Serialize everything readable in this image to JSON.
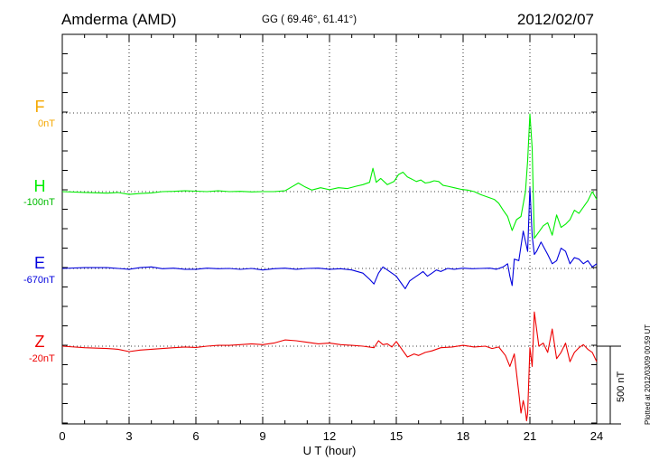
{
  "header": {
    "station": "Amderma (AMD)",
    "coords": "GG ( 69.46°,  61.41°)",
    "date": "2012/02/07"
  },
  "footer": {
    "plotted": "Plotted at 2012/03/09 00:59 UT"
  },
  "scale_bar": {
    "label": "500 nT",
    "value_nT": 500
  },
  "chart_data": {
    "type": "line",
    "xlabel": "U T (hour)",
    "xlim": [
      0,
      24
    ],
    "xticks": [
      0,
      3,
      6,
      9,
      12,
      15,
      18,
      21,
      24
    ],
    "grid": true,
    "legend": "left",
    "series": [
      {
        "name": "F",
        "baseline_label": "0nT",
        "color": "#f5a800",
        "x": [],
        "values": []
      },
      {
        "name": "H",
        "baseline_label": "-100nT",
        "color": "#00ee00",
        "x": [
          0,
          1,
          2,
          2.5,
          3,
          3.5,
          4,
          4.5,
          5,
          5.5,
          6,
          6.5,
          7,
          7.5,
          8,
          8.5,
          9,
          9.5,
          10,
          10.3,
          10.6,
          10.9,
          11.2,
          11.6,
          12,
          12.4,
          12.8,
          13.2,
          13.5,
          13.8,
          13.95,
          14.1,
          14.3,
          14.6,
          14.9,
          15.1,
          15.3,
          15.5,
          15.7,
          15.9,
          16.1,
          16.3,
          16.5,
          16.7,
          16.9,
          17.1,
          17.3,
          17.6,
          17.9,
          18.2,
          18.5,
          18.8,
          19.1,
          19.4,
          19.6,
          19.8,
          20.0,
          20.2,
          20.4,
          20.6,
          20.8,
          20.9,
          21.0,
          21.1,
          21.2,
          21.4,
          21.6,
          21.8,
          22.0,
          22.2,
          22.4,
          22.6,
          22.8,
          23.0,
          23.2,
          23.4,
          23.6,
          23.8,
          24
        ],
        "values": [
          -100,
          -105,
          -110,
          -106,
          -118,
          -112,
          -108,
          -100,
          -98,
          -95,
          -97,
          -100,
          -95,
          -100,
          -98,
          -102,
          -100,
          -100,
          -95,
          -70,
          -45,
          -70,
          -90,
          -75,
          -88,
          -75,
          -80,
          -65,
          -55,
          -40,
          50,
          -40,
          -15,
          -55,
          -35,
          10,
          25,
          -5,
          -20,
          -35,
          -25,
          -45,
          -40,
          -30,
          -35,
          -60,
          -65,
          -75,
          -85,
          -90,
          -100,
          -120,
          -135,
          -150,
          -175,
          -220,
          -260,
          -350,
          -280,
          -260,
          -100,
          100,
          400,
          180,
          -400,
          -360,
          -320,
          -300,
          -380,
          -250,
          -330,
          -310,
          -280,
          -220,
          -240,
          -200,
          -160,
          -100,
          -150
        ]
      },
      {
        "name": "E",
        "baseline_label": "-670nT",
        "color": "#0000dd",
        "x": [
          0,
          1,
          2,
          2.5,
          3,
          3.5,
          4,
          4.5,
          5,
          5.5,
          6,
          6.5,
          7,
          7.5,
          8,
          8.5,
          9,
          9.5,
          10,
          10.5,
          11,
          11.5,
          12,
          12.5,
          13,
          13.5,
          13.8,
          14.0,
          14.2,
          14.4,
          14.6,
          14.8,
          15.0,
          15.2,
          15.4,
          15.6,
          15.8,
          16.0,
          16.2,
          16.4,
          16.6,
          16.8,
          17.0,
          17.3,
          17.6,
          18.0,
          18.4,
          18.8,
          19.2,
          19.5,
          19.8,
          20.0,
          20.1,
          20.2,
          20.3,
          20.5,
          20.7,
          20.9,
          21.0,
          21.1,
          21.2,
          21.3,
          21.5,
          21.8,
          22.0,
          22.2,
          22.4,
          22.6,
          22.8,
          23.0,
          23.2,
          23.4,
          23.6,
          23.8,
          24
        ],
        "values": [
          -670,
          -665,
          -665,
          -670,
          -675,
          -665,
          -660,
          -672,
          -668,
          -675,
          -675,
          -668,
          -672,
          -670,
          -676,
          -670,
          -680,
          -672,
          -668,
          -675,
          -670,
          -668,
          -675,
          -672,
          -680,
          -700,
          -740,
          -770,
          -700,
          -660,
          -680,
          -700,
          -720,
          -760,
          -800,
          -750,
          -730,
          -710,
          -690,
          -720,
          -700,
          -680,
          -690,
          -670,
          -675,
          -668,
          -672,
          -670,
          -668,
          -675,
          -660,
          -640,
          -720,
          -780,
          -610,
          -620,
          -430,
          -560,
          -150,
          -460,
          -580,
          -560,
          -500,
          -580,
          -640,
          -620,
          -540,
          -560,
          -640,
          -600,
          -610,
          -640,
          -620,
          -660,
          -640
        ]
      },
      {
        "name": "Z",
        "baseline_label": "-20nT",
        "color": "#ee0000",
        "x": [
          0,
          1,
          2,
          2.5,
          3,
          3.5,
          4,
          4.5,
          5,
          5.5,
          6,
          6.5,
          7,
          7.5,
          8,
          8.5,
          9,
          9.5,
          10,
          10.5,
          11,
          11.5,
          12,
          12.5,
          13,
          13.5,
          14.0,
          14.2,
          14.4,
          14.6,
          14.8,
          15.0,
          15.3,
          15.5,
          15.8,
          16.0,
          16.3,
          16.6,
          17.0,
          17.5,
          18,
          18.5,
          19,
          19.3,
          19.6,
          19.9,
          20.1,
          20.3,
          20.5,
          20.6,
          20.7,
          20.8,
          20.85,
          20.9,
          21.0,
          21.1,
          21.2,
          21.4,
          21.6,
          21.8,
          22.0,
          22.2,
          22.4,
          22.6,
          22.8,
          23.0,
          23.2,
          23.4,
          23.6,
          23.8,
          24
        ],
        "values": [
          -20,
          -30,
          -35,
          -40,
          -55,
          -45,
          -40,
          -35,
          -30,
          -25,
          -28,
          -20,
          -15,
          -15,
          -10,
          -5,
          -10,
          0,
          20,
          15,
          5,
          -5,
          0,
          -10,
          -15,
          -20,
          -30,
          15,
          -10,
          -5,
          -25,
          10,
          -50,
          -90,
          -70,
          -80,
          -60,
          -50,
          -30,
          -25,
          -15,
          -25,
          -20,
          -35,
          -25,
          -80,
          -150,
          -70,
          -320,
          -450,
          -370,
          -440,
          -500,
          -450,
          -30,
          -150,
          200,
          -20,
          0,
          -60,
          90,
          -100,
          -60,
          0,
          -120,
          -60,
          -30,
          -10,
          -40,
          -60,
          -120
        ]
      }
    ]
  }
}
